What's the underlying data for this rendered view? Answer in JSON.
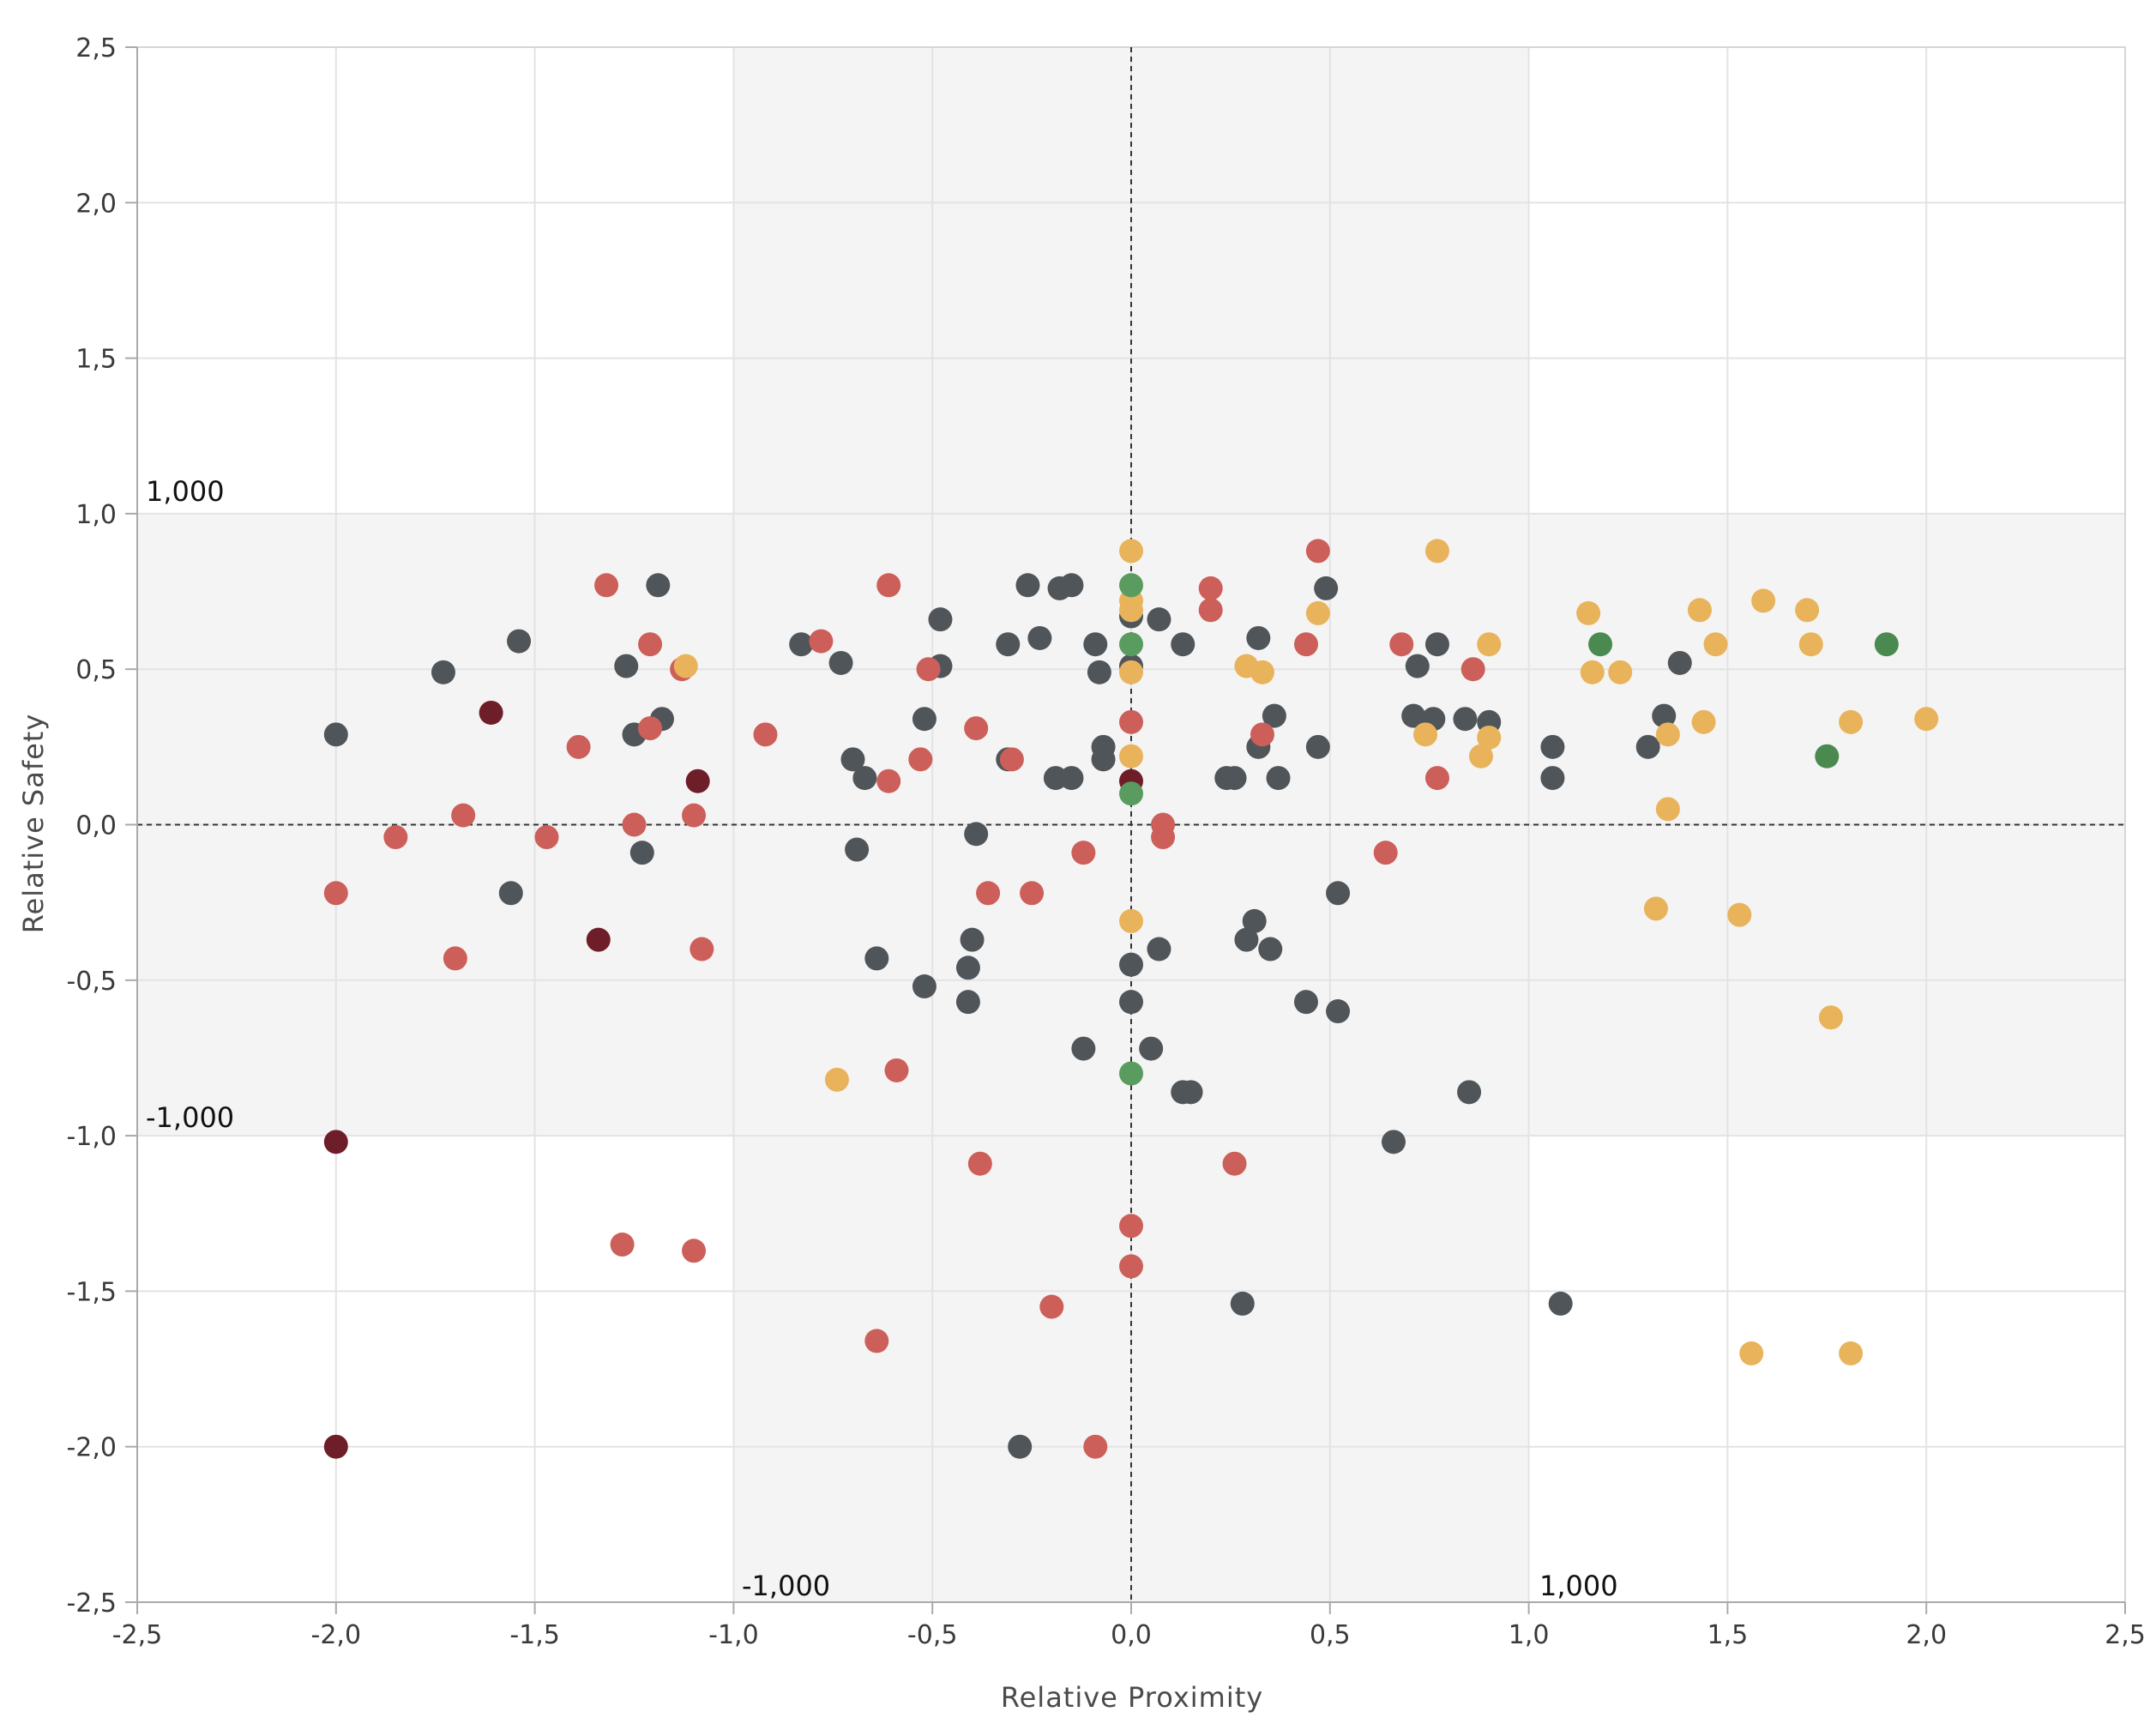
{
  "chart_data": {
    "type": "scatter",
    "title": "",
    "xlabel": "Relative Proximity",
    "ylabel": "Relative Safety",
    "xlim": [
      -2.5,
      2.5
    ],
    "ylim": [
      -2.5,
      2.5
    ],
    "x_ticks": [
      "-2,5",
      "-2,0",
      "-1,5",
      "-1,0",
      "-0,5",
      "0,0",
      "0,5",
      "1,0",
      "1,5",
      "2,0",
      "2,5"
    ],
    "y_ticks": [
      "2,5",
      "2,0",
      "1,5",
      "1,0",
      "0,5",
      "0,0",
      "-0,5",
      "-1,0",
      "-1,5",
      "-2,0",
      "-2,5"
    ],
    "grid": true,
    "shaded_bands": {
      "x": [
        -1,
        1
      ],
      "y": [
        -1,
        1
      ],
      "color": "#f4f4f4"
    },
    "reference_lines": {
      "x": 0,
      "y": 0,
      "style": "dotted",
      "color": "#333333"
    },
    "band_labels": {
      "y_top": "1,000",
      "y_bottom": "-1,000",
      "x_left": "-1,000",
      "x_right": "1,000"
    },
    "colors": {
      "gray": "#50555a",
      "red": "#cd5f5a",
      "orange": "#e8b35a",
      "maroon": "#6e1e28",
      "green": "#5a9b5f",
      "green_dark": "#4a8a50"
    },
    "points": [
      {
        "x": -2.0,
        "y": 0.29,
        "c": "gray"
      },
      {
        "x": -1.73,
        "y": 0.49,
        "c": "gray"
      },
      {
        "x": -1.54,
        "y": 0.59,
        "c": "gray"
      },
      {
        "x": -1.56,
        "y": -0.22,
        "c": "gray"
      },
      {
        "x": -1.27,
        "y": 0.51,
        "c": "gray"
      },
      {
        "x": -1.25,
        "y": 0.29,
        "c": "gray"
      },
      {
        "x": -1.23,
        "y": -0.09,
        "c": "gray"
      },
      {
        "x": -1.19,
        "y": 0.77,
        "c": "gray"
      },
      {
        "x": -1.18,
        "y": 0.34,
        "c": "gray"
      },
      {
        "x": -0.83,
        "y": 0.58,
        "c": "gray"
      },
      {
        "x": -0.73,
        "y": 0.52,
        "c": "gray"
      },
      {
        "x": -0.7,
        "y": 0.21,
        "c": "gray"
      },
      {
        "x": -0.67,
        "y": 0.15,
        "c": "gray"
      },
      {
        "x": -0.69,
        "y": -0.08,
        "c": "gray"
      },
      {
        "x": -0.64,
        "y": -0.43,
        "c": "gray"
      },
      {
        "x": -0.52,
        "y": 0.34,
        "c": "gray"
      },
      {
        "x": -0.52,
        "y": -0.52,
        "c": "gray"
      },
      {
        "x": -0.48,
        "y": 0.66,
        "c": "gray"
      },
      {
        "x": -0.48,
        "y": 0.51,
        "c": "gray"
      },
      {
        "x": -0.4,
        "y": -0.37,
        "c": "gray"
      },
      {
        "x": -0.41,
        "y": -0.46,
        "c": "gray"
      },
      {
        "x": -0.41,
        "y": -0.57,
        "c": "gray"
      },
      {
        "x": -0.39,
        "y": -0.03,
        "c": "gray"
      },
      {
        "x": -0.31,
        "y": 0.58,
        "c": "gray"
      },
      {
        "x": -0.31,
        "y": 0.21,
        "c": "gray"
      },
      {
        "x": -0.26,
        "y": 0.77,
        "c": "gray"
      },
      {
        "x": -0.23,
        "y": 0.6,
        "c": "gray"
      },
      {
        "x": -0.18,
        "y": 0.76,
        "c": "gray"
      },
      {
        "x": -0.19,
        "y": 0.15,
        "c": "gray"
      },
      {
        "x": -0.15,
        "y": 0.77,
        "c": "gray"
      },
      {
        "x": -0.15,
        "y": 0.15,
        "c": "gray"
      },
      {
        "x": -0.09,
        "y": 0.58,
        "c": "gray"
      },
      {
        "x": -0.08,
        "y": 0.49,
        "c": "gray"
      },
      {
        "x": -0.07,
        "y": 0.25,
        "c": "gray"
      },
      {
        "x": -0.07,
        "y": 0.21,
        "c": "gray"
      },
      {
        "x": -0.12,
        "y": -0.72,
        "c": "gray"
      },
      {
        "x": -0.28,
        "y": -2.0,
        "c": "gray"
      },
      {
        "x": 0.0,
        "y": 0.67,
        "c": "gray"
      },
      {
        "x": 0.0,
        "y": 0.51,
        "c": "gray"
      },
      {
        "x": 0.0,
        "y": -0.45,
        "c": "gray"
      },
      {
        "x": 0.0,
        "y": -0.57,
        "c": "gray"
      },
      {
        "x": 0.07,
        "y": 0.66,
        "c": "gray"
      },
      {
        "x": 0.07,
        "y": -0.4,
        "c": "gray"
      },
      {
        "x": 0.05,
        "y": -0.72,
        "c": "gray"
      },
      {
        "x": 0.13,
        "y": 0.58,
        "c": "gray"
      },
      {
        "x": 0.13,
        "y": -0.86,
        "c": "gray"
      },
      {
        "x": 0.15,
        "y": -0.86,
        "c": "gray"
      },
      {
        "x": 0.24,
        "y": 0.15,
        "c": "gray"
      },
      {
        "x": 0.26,
        "y": 0.15,
        "c": "gray"
      },
      {
        "x": 0.28,
        "y": -1.54,
        "c": "gray"
      },
      {
        "x": 0.29,
        "y": -0.37,
        "c": "gray"
      },
      {
        "x": 0.31,
        "y": -0.31,
        "c": "gray"
      },
      {
        "x": 0.32,
        "y": 0.6,
        "c": "gray"
      },
      {
        "x": 0.32,
        "y": 0.25,
        "c": "gray"
      },
      {
        "x": 0.35,
        "y": -0.4,
        "c": "gray"
      },
      {
        "x": 0.36,
        "y": 0.35,
        "c": "gray"
      },
      {
        "x": 0.37,
        "y": 0.15,
        "c": "gray"
      },
      {
        "x": 0.44,
        "y": -0.57,
        "c": "gray"
      },
      {
        "x": 0.47,
        "y": 0.25,
        "c": "gray"
      },
      {
        "x": 0.49,
        "y": 0.76,
        "c": "gray"
      },
      {
        "x": 0.52,
        "y": -0.22,
        "c": "gray"
      },
      {
        "x": 0.52,
        "y": -0.6,
        "c": "gray"
      },
      {
        "x": 0.66,
        "y": -1.02,
        "c": "gray"
      },
      {
        "x": 0.71,
        "y": 0.35,
        "c": "gray"
      },
      {
        "x": 0.72,
        "y": 0.51,
        "c": "gray"
      },
      {
        "x": 0.76,
        "y": 0.34,
        "c": "gray"
      },
      {
        "x": 0.77,
        "y": 0.58,
        "c": "gray"
      },
      {
        "x": 0.84,
        "y": 0.34,
        "c": "gray"
      },
      {
        "x": 0.85,
        "y": -0.86,
        "c": "gray"
      },
      {
        "x": 0.9,
        "y": 0.33,
        "c": "gray"
      },
      {
        "x": 1.06,
        "y": 0.25,
        "c": "gray"
      },
      {
        "x": 1.06,
        "y": 0.15,
        "c": "gray"
      },
      {
        "x": 1.08,
        "y": -1.54,
        "c": "gray"
      },
      {
        "x": 1.3,
        "y": 0.25,
        "c": "gray"
      },
      {
        "x": 1.34,
        "y": 0.35,
        "c": "gray"
      },
      {
        "x": 1.38,
        "y": 0.52,
        "c": "gray"
      },
      {
        "x": -2.0,
        "y": -0.22,
        "c": "red"
      },
      {
        "x": -1.85,
        "y": -0.04,
        "c": "red"
      },
      {
        "x": -1.7,
        "y": -0.43,
        "c": "red"
      },
      {
        "x": -1.68,
        "y": 0.03,
        "c": "red"
      },
      {
        "x": -1.47,
        "y": -0.04,
        "c": "red"
      },
      {
        "x": -1.39,
        "y": 0.25,
        "c": "red"
      },
      {
        "x": -1.32,
        "y": 0.77,
        "c": "red"
      },
      {
        "x": -1.28,
        "y": -1.35,
        "c": "red"
      },
      {
        "x": -1.25,
        "y": 0.0,
        "c": "red"
      },
      {
        "x": -1.21,
        "y": 0.58,
        "c": "red"
      },
      {
        "x": -1.21,
        "y": 0.31,
        "c": "red"
      },
      {
        "x": -1.13,
        "y": 0.5,
        "c": "red"
      },
      {
        "x": -1.1,
        "y": 0.03,
        "c": "red"
      },
      {
        "x": -1.1,
        "y": -1.37,
        "c": "red"
      },
      {
        "x": -1.08,
        "y": -0.4,
        "c": "red"
      },
      {
        "x": -0.92,
        "y": 0.29,
        "c": "red"
      },
      {
        "x": -0.78,
        "y": 0.59,
        "c": "red"
      },
      {
        "x": -0.61,
        "y": 0.77,
        "c": "red"
      },
      {
        "x": -0.61,
        "y": 0.14,
        "c": "red"
      },
      {
        "x": -0.59,
        "y": -0.79,
        "c": "red"
      },
      {
        "x": -0.64,
        "y": -1.66,
        "c": "red"
      },
      {
        "x": -0.53,
        "y": 0.21,
        "c": "red"
      },
      {
        "x": -0.51,
        "y": 0.5,
        "c": "red"
      },
      {
        "x": -0.39,
        "y": 0.31,
        "c": "red"
      },
      {
        "x": -0.38,
        "y": -1.09,
        "c": "red"
      },
      {
        "x": -0.36,
        "y": -0.22,
        "c": "red"
      },
      {
        "x": -0.3,
        "y": 0.21,
        "c": "red"
      },
      {
        "x": -0.25,
        "y": -0.22,
        "c": "red"
      },
      {
        "x": -0.2,
        "y": -1.55,
        "c": "red"
      },
      {
        "x": -0.12,
        "y": -0.09,
        "c": "red"
      },
      {
        "x": -0.09,
        "y": -2.0,
        "c": "red"
      },
      {
        "x": 0.0,
        "y": 0.33,
        "c": "red"
      },
      {
        "x": 0.0,
        "y": -1.29,
        "c": "red"
      },
      {
        "x": 0.0,
        "y": -1.42,
        "c": "red"
      },
      {
        "x": 0.08,
        "y": 0.0,
        "c": "red"
      },
      {
        "x": 0.08,
        "y": -0.04,
        "c": "red"
      },
      {
        "x": 0.2,
        "y": 0.76,
        "c": "red"
      },
      {
        "x": 0.2,
        "y": 0.69,
        "c": "red"
      },
      {
        "x": 0.26,
        "y": -1.09,
        "c": "red"
      },
      {
        "x": 0.33,
        "y": 0.29,
        "c": "red"
      },
      {
        "x": 0.44,
        "y": 0.58,
        "c": "red"
      },
      {
        "x": 0.47,
        "y": 0.88,
        "c": "red"
      },
      {
        "x": 0.64,
        "y": -0.09,
        "c": "red"
      },
      {
        "x": 0.68,
        "y": 0.58,
        "c": "red"
      },
      {
        "x": 0.77,
        "y": 0.15,
        "c": "red"
      },
      {
        "x": 0.86,
        "y": 0.5,
        "c": "red"
      },
      {
        "x": -1.12,
        "y": 0.51,
        "c": "orange"
      },
      {
        "x": -0.74,
        "y": -0.82,
        "c": "orange"
      },
      {
        "x": 0.0,
        "y": 0.88,
        "c": "orange"
      },
      {
        "x": 0.0,
        "y": 0.72,
        "c": "orange"
      },
      {
        "x": 0.0,
        "y": 0.69,
        "c": "orange"
      },
      {
        "x": 0.0,
        "y": 0.49,
        "c": "orange"
      },
      {
        "x": 0.0,
        "y": 0.22,
        "c": "orange"
      },
      {
        "x": 0.0,
        "y": -0.31,
        "c": "orange"
      },
      {
        "x": 0.29,
        "y": 0.51,
        "c": "orange"
      },
      {
        "x": 0.33,
        "y": 0.49,
        "c": "orange"
      },
      {
        "x": 0.47,
        "y": 0.68,
        "c": "orange"
      },
      {
        "x": 0.74,
        "y": 0.29,
        "c": "orange"
      },
      {
        "x": 0.77,
        "y": 0.88,
        "c": "orange"
      },
      {
        "x": 0.88,
        "y": 0.22,
        "c": "orange"
      },
      {
        "x": 0.9,
        "y": 0.58,
        "c": "orange"
      },
      {
        "x": 0.9,
        "y": 0.28,
        "c": "orange"
      },
      {
        "x": 1.15,
        "y": 0.68,
        "c": "orange"
      },
      {
        "x": 1.16,
        "y": 0.49,
        "c": "orange"
      },
      {
        "x": 1.23,
        "y": 0.49,
        "c": "orange"
      },
      {
        "x": 1.32,
        "y": -0.27,
        "c": "orange"
      },
      {
        "x": 1.35,
        "y": 0.29,
        "c": "orange"
      },
      {
        "x": 1.35,
        "y": 0.05,
        "c": "orange"
      },
      {
        "x": 1.43,
        "y": 0.69,
        "c": "orange"
      },
      {
        "x": 1.44,
        "y": 0.33,
        "c": "orange"
      },
      {
        "x": 1.47,
        "y": 0.58,
        "c": "orange"
      },
      {
        "x": 1.53,
        "y": -0.29,
        "c": "orange"
      },
      {
        "x": 1.56,
        "y": -1.7,
        "c": "orange"
      },
      {
        "x": 1.59,
        "y": 0.72,
        "c": "orange"
      },
      {
        "x": 1.7,
        "y": 0.69,
        "c": "orange"
      },
      {
        "x": 1.71,
        "y": 0.58,
        "c": "orange"
      },
      {
        "x": 1.76,
        "y": -0.62,
        "c": "orange"
      },
      {
        "x": 1.81,
        "y": 0.33,
        "c": "orange"
      },
      {
        "x": 1.81,
        "y": -1.7,
        "c": "orange"
      },
      {
        "x": 2.0,
        "y": 0.34,
        "c": "orange"
      },
      {
        "x": -2.0,
        "y": -1.02,
        "c": "maroon"
      },
      {
        "x": -2.0,
        "y": -2.0,
        "c": "maroon"
      },
      {
        "x": -1.61,
        "y": 0.36,
        "c": "maroon"
      },
      {
        "x": -1.34,
        "y": -0.37,
        "c": "maroon"
      },
      {
        "x": -1.09,
        "y": 0.14,
        "c": "maroon"
      },
      {
        "x": 0.0,
        "y": 0.14,
        "c": "maroon"
      },
      {
        "x": 0.0,
        "y": 0.77,
        "c": "green"
      },
      {
        "x": 0.0,
        "y": 0.58,
        "c": "green"
      },
      {
        "x": 0.0,
        "y": 0.1,
        "c": "green"
      },
      {
        "x": 0.0,
        "y": -0.8,
        "c": "green"
      },
      {
        "x": 1.18,
        "y": 0.58,
        "c": "green_dark"
      },
      {
        "x": 1.75,
        "y": 0.22,
        "c": "green_dark"
      },
      {
        "x": 1.9,
        "y": 0.58,
        "c": "green_dark"
      }
    ]
  }
}
